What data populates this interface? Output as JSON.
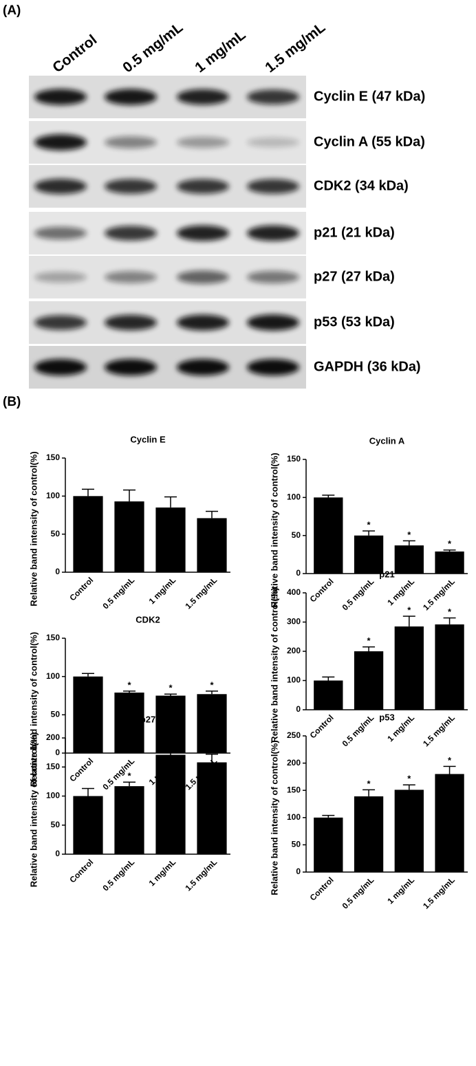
{
  "panel_a": {
    "label": "(A)",
    "lanes": [
      "Control",
      "0.5 mg/mL",
      "1 mg/mL",
      "1.5 mg/mL"
    ],
    "bands": [
      "Cyclin E (47 kDa)",
      "Cyclin A (55 kDa)",
      "CDK2 (34 kDa)",
      "p21 (21 kDa)",
      "p27 (27 kDa)",
      "p53 (53 kDa)",
      "GAPDH (36 kDa)"
    ]
  },
  "panel_b": {
    "label": "(B)"
  },
  "chart_data": [
    {
      "type": "bar",
      "title": "Cyclin E",
      "ylabel": "Relative band intensity of control(%)",
      "color": "#000000",
      "categories": [
        "Control",
        "0.5 mg/mL",
        "1 mg/mL",
        "1.5 mg/mL"
      ],
      "values": [
        100,
        93,
        85,
        71
      ],
      "errors": [
        9,
        15,
        14,
        9
      ],
      "ylim": [
        0,
        150
      ],
      "yticks": [
        0,
        50,
        100,
        150
      ]
    },
    {
      "type": "bar",
      "title": "Cyclin A",
      "ylabel": "Relative band intensity of control(%)",
      "color": "#000000",
      "categories": [
        "Control",
        "0.5 mg/mL",
        "1 mg/mL",
        "1.5 mg/mL"
      ],
      "values": [
        100,
        50,
        37,
        29
      ],
      "errors": [
        3,
        6,
        6,
        2
      ],
      "significance": [
        null,
        "*",
        "*",
        "*"
      ],
      "ylim": [
        0,
        150
      ],
      "yticks": [
        0,
        50,
        100,
        150
      ]
    },
    {
      "type": "bar",
      "title": "CDK2",
      "ylabel": "Relative band intensity of control(%)",
      "color": "#000000",
      "categories": [
        "Control",
        "0.5 mg/mL",
        "1 mg/mL",
        "1.5 mg/mL"
      ],
      "values": [
        100,
        79,
        75,
        77
      ],
      "errors": [
        4,
        2,
        2,
        4
      ],
      "significance": [
        null,
        "*",
        "*",
        "*"
      ],
      "ylim": [
        0,
        150
      ],
      "yticks": [
        0,
        50,
        100,
        150
      ]
    },
    {
      "type": "bar",
      "title": "p21",
      "ylabel": "Relative band intensity of control(%)",
      "color": "#000000",
      "categories": [
        "Control",
        "0.5 mg/mL",
        "1 mg/mL",
        "1.5 mg/mL"
      ],
      "values": [
        100,
        200,
        285,
        292
      ],
      "errors": [
        12,
        15,
        35,
        22
      ],
      "significance": [
        null,
        "*",
        "*",
        "*"
      ],
      "ylim": [
        0,
        400
      ],
      "yticks": [
        0,
        100,
        200,
        300,
        400
      ]
    },
    {
      "type": "bar",
      "title": "p27",
      "ylabel": "Relative band intensity of control(%)",
      "color": "#000000",
      "categories": [
        "Control",
        "0.5 mg/mL",
        "1 mg/mL",
        "1.5 mg/mL"
      ],
      "values": [
        100,
        117,
        171,
        158
      ],
      "errors": [
        13,
        7,
        14,
        14
      ],
      "significance": [
        null,
        "*",
        "*",
        "*"
      ],
      "ylim": [
        0,
        200
      ],
      "yticks": [
        0,
        50,
        100,
        150,
        200
      ]
    },
    {
      "type": "bar",
      "title": "p53",
      "ylabel": "Relative band intensity of control(%)",
      "color": "#000000",
      "categories": [
        "Control",
        "0.5 mg/mL",
        "1 mg/mL",
        "1.5 mg/mL"
      ],
      "values": [
        100,
        139,
        151,
        180
      ],
      "errors": [
        4,
        12,
        9,
        14
      ],
      "significance": [
        null,
        "*",
        "*",
        "*"
      ],
      "ylim": [
        0,
        250
      ],
      "yticks": [
        0,
        50,
        100,
        150,
        200,
        250
      ]
    }
  ]
}
